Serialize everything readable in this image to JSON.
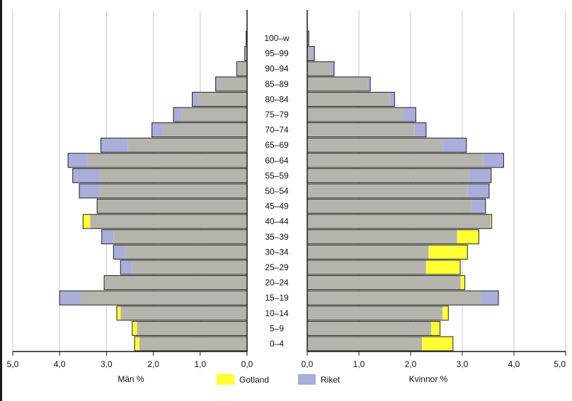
{
  "chart_data": {
    "type": "bar",
    "orientation": "horizontal-population-pyramid",
    "categories": [
      "100–w",
      "95–99",
      "90–94",
      "85–89",
      "80–84",
      "75–79",
      "70–74",
      "65–69",
      "60–64",
      "55–59",
      "50–54",
      "45–49",
      "40–44",
      "35–39",
      "30–34",
      "25–29",
      "20–24",
      "15–19",
      "10–14",
      "5–9",
      "0–4"
    ],
    "left_panel": {
      "label": "Män %",
      "xlim": [
        5.0,
        0.0
      ],
      "ticks": [
        "5,0",
        "4,0",
        "3,0",
        "2,0",
        "1,0",
        "0,0"
      ],
      "series": [
        {
          "name": "Gotland",
          "values": [
            0.02,
            0.04,
            0.2,
            0.62,
            1.04,
            1.4,
            1.8,
            2.55,
            3.4,
            3.15,
            3.15,
            3.2,
            3.5,
            2.85,
            2.6,
            2.45,
            3.05,
            3.55,
            2.78,
            2.45,
            2.4
          ]
        },
        {
          "name": "Riket",
          "values": [
            0.02,
            0.05,
            0.22,
            0.67,
            1.17,
            1.57,
            2.03,
            3.12,
            3.82,
            3.72,
            3.58,
            3.2,
            3.35,
            3.1,
            2.85,
            2.7,
            3.05,
            4.0,
            2.7,
            2.35,
            2.3
          ]
        }
      ]
    },
    "right_panel": {
      "label": "Kvinnor %",
      "xlim": [
        0.0,
        5.0
      ],
      "ticks": [
        "0,0",
        "1,0",
        "2,0",
        "3,0",
        "4,0",
        "5,0"
      ],
      "series": [
        {
          "name": "Gotland",
          "values": [
            0.02,
            0.08,
            0.45,
            1.17,
            1.6,
            1.85,
            2.08,
            2.62,
            3.4,
            3.15,
            3.1,
            3.18,
            3.57,
            3.32,
            3.1,
            2.96,
            3.05,
            3.37,
            2.73,
            2.57,
            2.82
          ]
        },
        {
          "name": "Riket",
          "values": [
            0.03,
            0.14,
            0.52,
            1.22,
            1.69,
            2.1,
            2.3,
            3.08,
            3.8,
            3.56,
            3.52,
            3.45,
            3.55,
            2.9,
            2.35,
            2.3,
            2.97,
            3.7,
            2.62,
            2.4,
            2.22
          ]
        }
      ]
    },
    "colors": {
      "gotland": "#ffff33",
      "riket": "#a9aedb",
      "overlap": "#b5b5ad",
      "grid": "#c8c8c8",
      "axis": "#1a1a1a",
      "bar_border": "#222222"
    },
    "grid": true,
    "legend": {
      "placement": "bottom-center",
      "items": [
        "Gotland",
        "Riket"
      ]
    }
  }
}
